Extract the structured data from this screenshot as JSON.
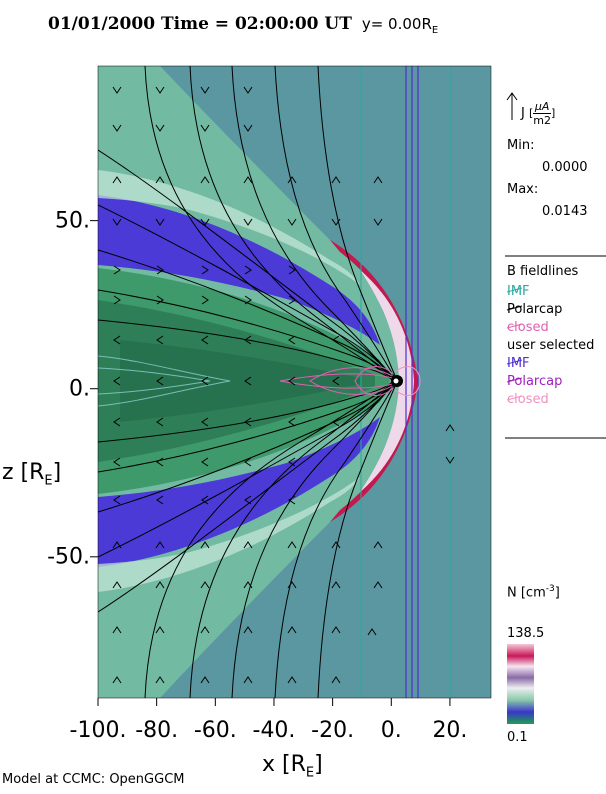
{
  "header": {
    "date": "01/01/2000",
    "time_label": "Time =",
    "time": "02:00:00",
    "time_unit": "UT",
    "position": "y= 0.00R",
    "position_sub": "E"
  },
  "current_panel": {
    "label": "J",
    "unit_num": "μA",
    "unit_den": "m2",
    "min_label": "Min:",
    "min_value": "0.0000",
    "max_label": "Max:",
    "max_value": "0.0143"
  },
  "legend": {
    "title": "B fieldlines",
    "items": [
      {
        "label": "IMF",
        "color": "#2aa8a0"
      },
      {
        "label": "Polarcap",
        "color": "#000000"
      },
      {
        "label": "closed",
        "color": "#e060b0"
      }
    ],
    "user_title": "user selected",
    "user_items": [
      {
        "label": "IMF",
        "color": "#5030d0"
      },
      {
        "label": "Polarcap",
        "color": "#a020c0"
      },
      {
        "label": "closed",
        "color": "#f090c0"
      }
    ]
  },
  "colorbar": {
    "label": "N [cm",
    "label_sup": "-3",
    "label_end": "]",
    "max": "138.5",
    "min": "0.1"
  },
  "footer": {
    "credit": "Model at CCMC: OpenGGCM"
  },
  "colors": {
    "background": "#5a97a0",
    "sheath": "#c21a4f",
    "lobe": "#4b3ad6",
    "sheet": "#2e8a5a",
    "earth": "#000000"
  },
  "chart_data": {
    "type": "heatmap",
    "quantity": "N [cm^-3]",
    "x_ticks": [
      "-100.",
      "-80.",
      "-60.",
      "-40.",
      "-20.",
      "0.",
      "20."
    ],
    "y_ticks": [
      "50.",
      "0.",
      "-50."
    ],
    "x_tick_values": [
      -100,
      -80,
      -60,
      -40,
      -20,
      0,
      20
    ],
    "y_tick_values": [
      50,
      0,
      -50
    ],
    "xlim": [
      -100,
      34
    ],
    "ylim": [
      -92,
      96
    ],
    "xlabel": "x [R",
    "xlabel_sub": "E",
    "xlabel_end": "]",
    "ylabel": "z [R",
    "ylabel_sub": "E",
    "ylabel_end": "]",
    "colorbar_range": [
      0.1,
      138.5
    ],
    "current_range": [
      0.0,
      0.0143
    ],
    "bow_shock_x": 8,
    "magnetopause_x": 5,
    "vertical_lines_x": [
      -10,
      4.5,
      6,
      7.5,
      18
    ],
    "field_lines": {
      "southward_footpoints_x": [
        -90,
        -80,
        -70,
        -60,
        -50,
        -40,
        -30,
        -20
      ],
      "northward_footpoints_x": [
        -90,
        -80,
        -70,
        -60,
        -50,
        -40,
        -30,
        -20
      ],
      "closed_loop_x_tail": -45
    }
  }
}
